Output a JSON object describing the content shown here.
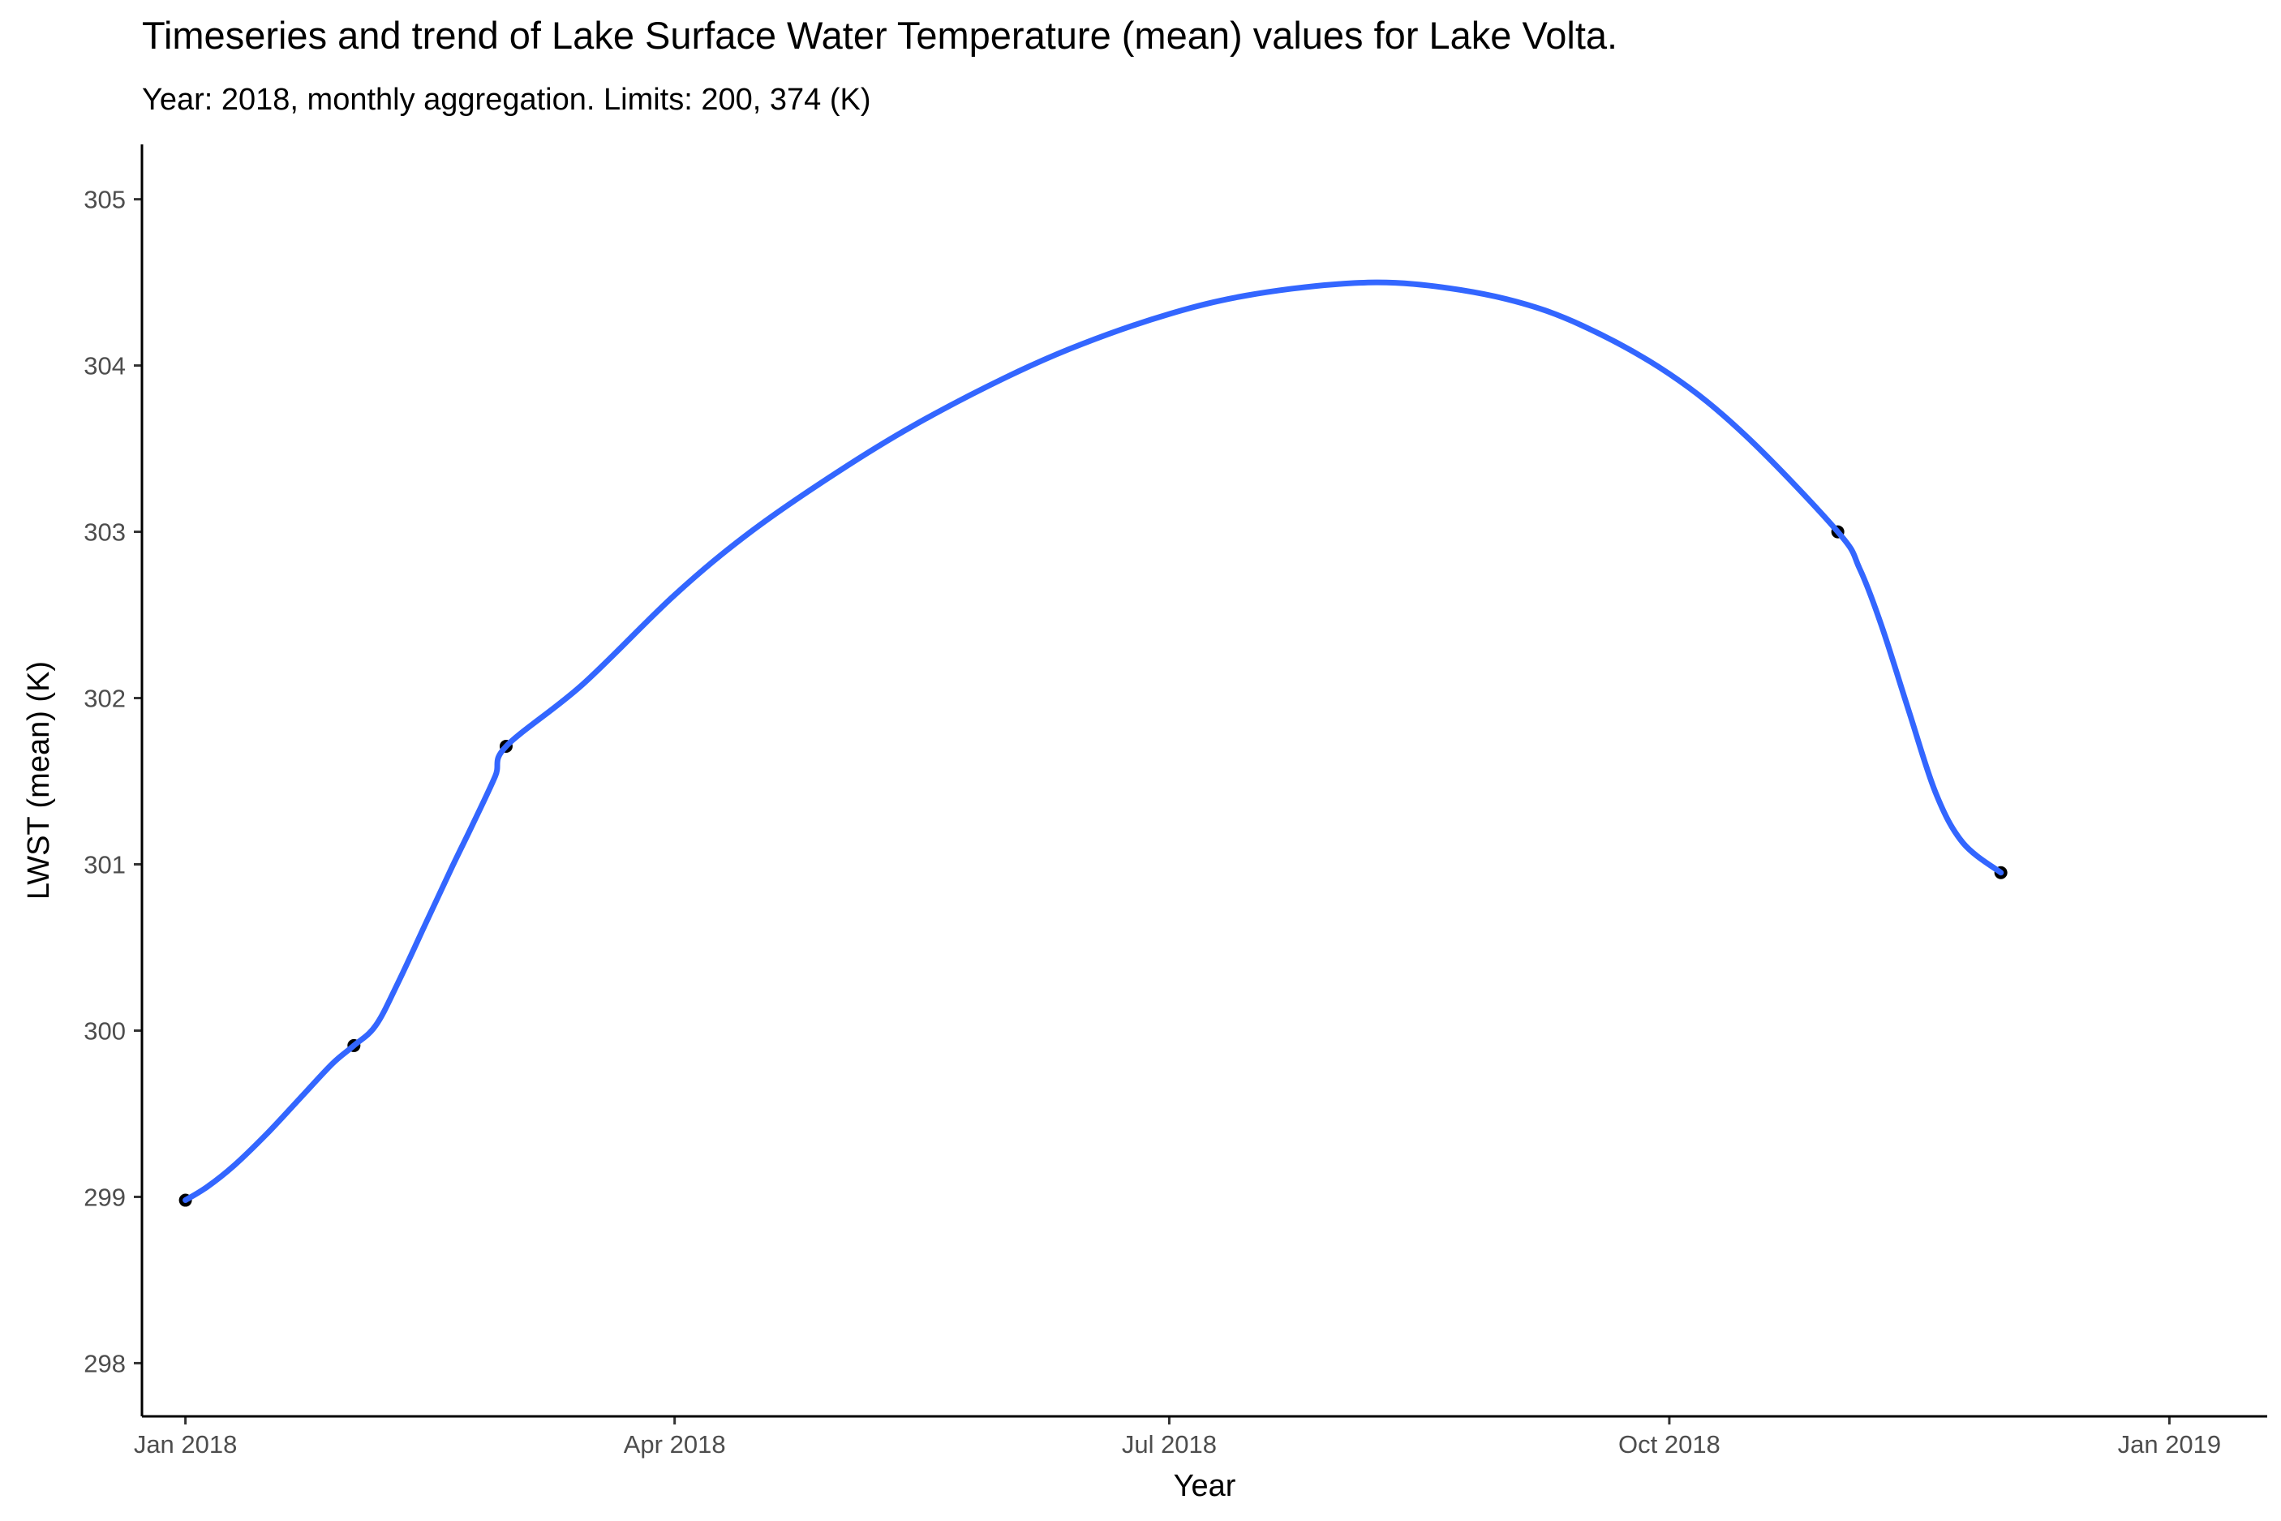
{
  "chart_data": {
    "type": "line",
    "title": "Timeseries and trend of Lake Surface Water Temperature (mean) values for Lake Volta.",
    "subtitle": "Year: 2018, monthly aggregation. Limits: 200, 374 (K)",
    "xlabel": "Year",
    "ylabel": "LWST (mean) (K)",
    "xlim": [
      "2017-12-24",
      "2019-01-19"
    ],
    "ylim": [
      297.68,
      305.33
    ],
    "x_ticks": [
      {
        "date": "2018-01-01",
        "label": "Jan 2018"
      },
      {
        "date": "2018-04-01",
        "label": "Apr 2018"
      },
      {
        "date": "2018-07-01",
        "label": "Jul 2018"
      },
      {
        "date": "2018-10-01",
        "label": "Oct 2018"
      },
      {
        "date": "2019-01-01",
        "label": "Jan 2019"
      }
    ],
    "y_ticks": [
      298,
      299,
      300,
      301,
      302,
      303,
      304,
      305
    ],
    "grid": false,
    "legend": "none",
    "series": [
      {
        "kind": "points",
        "color": "#000000",
        "points": [
          {
            "x": "2018-01-01",
            "y": 298.98
          },
          {
            "x": "2018-02-01",
            "y": 299.91
          },
          {
            "x": "2018-03-01",
            "y": 301.71
          },
          {
            "x": "2018-11-01",
            "y": 303.0
          },
          {
            "x": "2018-12-01",
            "y": 300.95
          }
        ]
      },
      {
        "kind": "trend",
        "color": "#3366FF",
        "points": [
          {
            "x": "2018-01-01",
            "y": 298.98
          },
          {
            "x": "2018-01-05",
            "y": 299.06
          },
          {
            "x": "2018-01-10",
            "y": 299.19
          },
          {
            "x": "2018-01-16",
            "y": 299.38
          },
          {
            "x": "2018-01-22",
            "y": 299.59
          },
          {
            "x": "2018-01-28",
            "y": 299.8
          },
          {
            "x": "2018-02-01",
            "y": 299.91
          },
          {
            "x": "2018-02-05",
            "y": 300.03
          },
          {
            "x": "2018-02-09",
            "y": 300.28
          },
          {
            "x": "2018-02-14",
            "y": 300.63
          },
          {
            "x": "2018-02-19",
            "y": 300.98
          },
          {
            "x": "2018-02-23",
            "y": 301.25
          },
          {
            "x": "2018-02-27",
            "y": 301.53
          },
          {
            "x": "2018-03-01",
            "y": 301.71
          },
          {
            "x": "2018-03-15",
            "y": 302.08
          },
          {
            "x": "2018-04-01",
            "y": 302.62
          },
          {
            "x": "2018-04-15",
            "y": 303.0
          },
          {
            "x": "2018-05-01",
            "y": 303.36
          },
          {
            "x": "2018-05-15",
            "y": 303.64
          },
          {
            "x": "2018-06-01",
            "y": 303.93
          },
          {
            "x": "2018-06-15",
            "y": 304.13
          },
          {
            "x": "2018-07-01",
            "y": 304.31
          },
          {
            "x": "2018-07-15",
            "y": 304.42
          },
          {
            "x": "2018-08-01",
            "y": 304.49
          },
          {
            "x": "2018-08-15",
            "y": 304.49
          },
          {
            "x": "2018-09-01",
            "y": 304.4
          },
          {
            "x": "2018-09-15",
            "y": 304.24
          },
          {
            "x": "2018-10-01",
            "y": 303.95
          },
          {
            "x": "2018-10-15",
            "y": 303.58
          },
          {
            "x": "2018-11-01",
            "y": 303.0
          },
          {
            "x": "2018-11-05",
            "y": 302.78
          },
          {
            "x": "2018-11-09",
            "y": 302.44
          },
          {
            "x": "2018-11-14",
            "y": 301.93
          },
          {
            "x": "2018-11-19",
            "y": 301.43
          },
          {
            "x": "2018-11-24",
            "y": 301.13
          },
          {
            "x": "2018-12-01",
            "y": 300.95
          }
        ]
      }
    ]
  }
}
